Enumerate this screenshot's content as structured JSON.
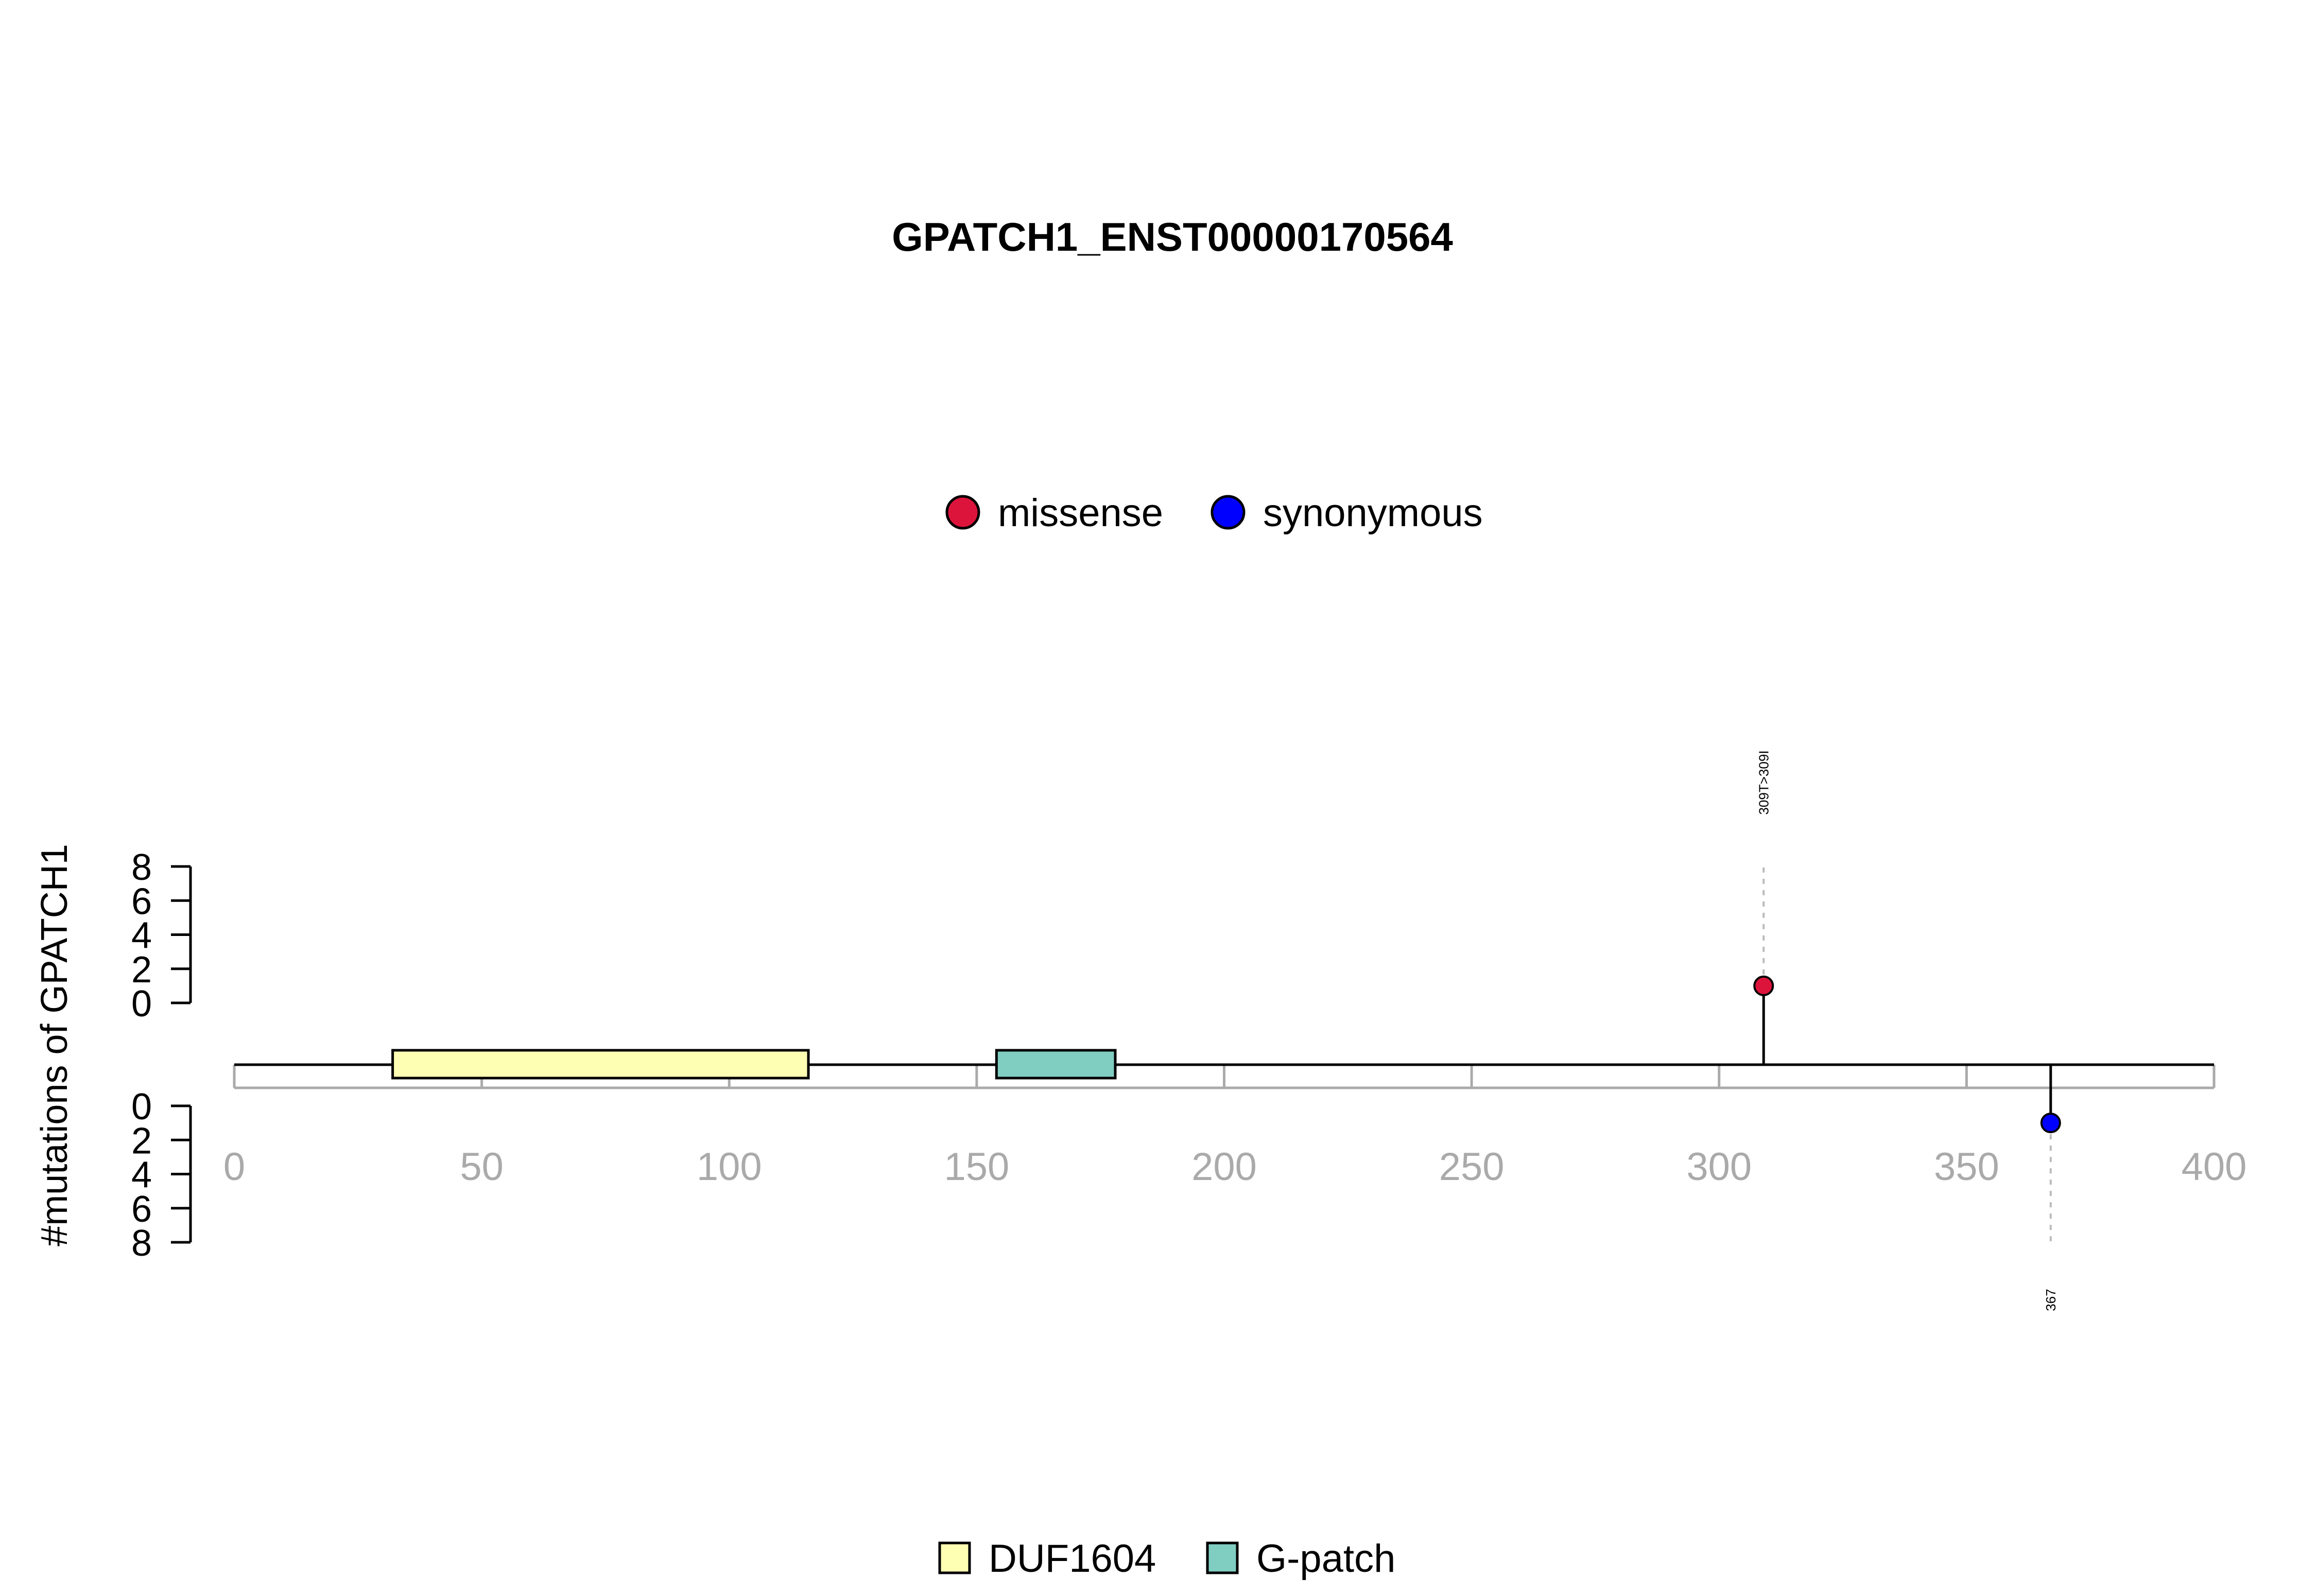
{
  "chart_data": {
    "type": "lollipop",
    "title": "GPATCH1_ENST00000170564",
    "ylabel": "#mutations of GPATCH1",
    "xlim": [
      0,
      400
    ],
    "x_ticks": [
      0,
      50,
      100,
      150,
      200,
      250,
      300,
      350,
      400
    ],
    "y_ticks": [
      0,
      2,
      4,
      6,
      8
    ],
    "ylim": [
      0,
      8
    ],
    "mutation_legend": [
      {
        "label": "missense",
        "color": "#dc143c"
      },
      {
        "label": "synonymous",
        "color": "#0000ff"
      }
    ],
    "domain_legend": [
      {
        "label": "DUF1604",
        "color": "#ffffb3"
      },
      {
        "label": "G-patch",
        "color": "#80cdc1"
      }
    ],
    "domains": [
      {
        "name": "DUF1604",
        "start": 32,
        "end": 116,
        "color": "#ffffb3"
      },
      {
        "name": "G-patch",
        "start": 154,
        "end": 178,
        "color": "#80cdc1"
      }
    ],
    "mutations": [
      {
        "position": 309,
        "count": 1,
        "type": "missense",
        "label": "309T>309I",
        "side": "top",
        "color": "#dc143c"
      },
      {
        "position": 367,
        "count": 1,
        "type": "synonymous",
        "label": "367",
        "side": "bottom",
        "color": "#0000ff"
      }
    ]
  }
}
